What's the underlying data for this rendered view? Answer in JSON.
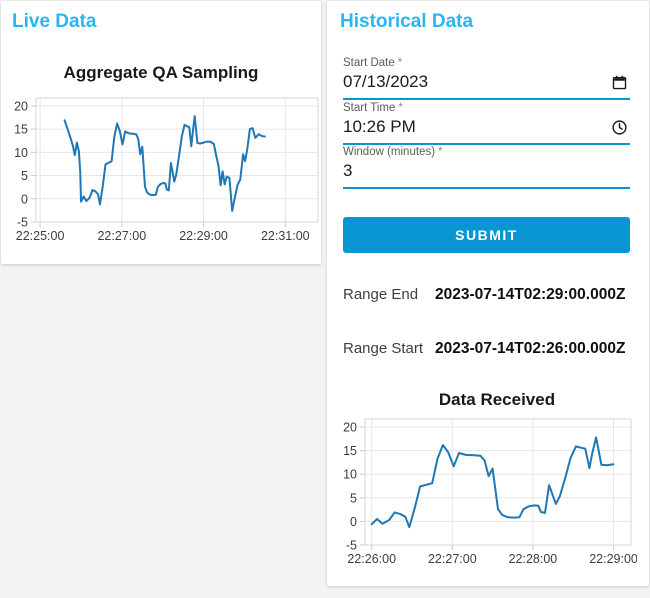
{
  "theme": {
    "heading_color": "#29b6f6",
    "accent": "#0a95d3",
    "line_color": "#1f77b4"
  },
  "panels": {
    "live": {
      "heading": "Live Data"
    },
    "historical": {
      "heading": "Historical Data"
    }
  },
  "form": {
    "start_date": {
      "label": "Start Date",
      "required_marker": "*",
      "value": "07/13/2023",
      "icon": "calendar-icon"
    },
    "start_time": {
      "label": "Start Time",
      "required_marker": "*",
      "value": "10:26 PM",
      "icon": "clock-icon"
    },
    "window_minutes": {
      "label": "Window (minutes)",
      "required_marker": "*",
      "value": "3"
    },
    "submit_label": "SUBMIT"
  },
  "results": {
    "range_end": {
      "label": "Range End",
      "value": "2023-07-14T02:29:00.000Z"
    },
    "range_start": {
      "label": "Range Start",
      "value": "2023-07-14T02:26:00.000Z"
    }
  },
  "chart_data": [
    {
      "id": "live",
      "type": "line",
      "title": "Aggregate QA Sampling",
      "x_base_time": "22:25:00",
      "x_unit": "seconds since 22:25:00",
      "xlim": [
        -6,
        408
      ],
      "ylim": [
        -5,
        21.7
      ],
      "yticks": [
        -5,
        0,
        5,
        10,
        15,
        20
      ],
      "xticks": [
        {
          "t": 0,
          "label": "22:25:00"
        },
        {
          "t": 120,
          "label": "22:27:00"
        },
        {
          "t": 240,
          "label": "22:29:00"
        },
        {
          "t": 360,
          "label": "22:31:00"
        }
      ],
      "grid": true,
      "legend": "none",
      "line_color": "#1f77b4",
      "points": [
        [
          36,
          16.9
        ],
        [
          40,
          15.2
        ],
        [
          44,
          13.4
        ],
        [
          48,
          11.5
        ],
        [
          51,
          9.4
        ],
        [
          54,
          12.1
        ],
        [
          57,
          10.2
        ],
        [
          59,
          5.5
        ],
        [
          60,
          -0.6
        ],
        [
          64,
          0.5
        ],
        [
          68,
          -0.5
        ],
        [
          73,
          0.3
        ],
        [
          77,
          1.9
        ],
        [
          81,
          1.6
        ],
        [
          85,
          1.0
        ],
        [
          88,
          -1.2
        ],
        [
          92,
          2.8
        ],
        [
          96,
          7.4
        ],
        [
          101,
          7.8
        ],
        [
          105,
          8.1
        ],
        [
          109,
          13.3
        ],
        [
          113,
          16.2
        ],
        [
          117,
          14.6
        ],
        [
          121,
          11.7
        ],
        [
          125,
          14.5
        ],
        [
          130,
          14.1
        ],
        [
          136,
          14.0
        ],
        [
          141,
          13.9
        ],
        [
          144,
          12.9
        ],
        [
          147,
          9.6
        ],
        [
          150,
          11.2
        ],
        [
          154,
          2.6
        ],
        [
          157,
          1.4
        ],
        [
          161,
          0.9
        ],
        [
          166,
          0.8
        ],
        [
          170,
          0.9
        ],
        [
          173,
          2.6
        ],
        [
          177,
          3.2
        ],
        [
          181,
          3.4
        ],
        [
          184,
          3.3
        ],
        [
          186,
          2.0
        ],
        [
          189,
          1.8
        ],
        [
          192,
          7.7
        ],
        [
          197,
          3.7
        ],
        [
          200,
          5.3
        ],
        [
          204,
          9.2
        ],
        [
          208,
          13.4
        ],
        [
          212,
          15.9
        ],
        [
          216,
          15.6
        ],
        [
          219,
          15.4
        ],
        [
          222,
          11.3
        ],
        [
          224,
          14.2
        ],
        [
          227,
          17.8
        ],
        [
          231,
          12.0
        ],
        [
          235,
          11.9
        ],
        [
          240,
          12.1
        ],
        [
          244,
          12.3
        ],
        [
          250,
          12.3
        ],
        [
          255,
          11.8
        ],
        [
          259,
          9.0
        ],
        [
          262,
          7.0
        ],
        [
          265,
          2.9
        ],
        [
          268,
          5.9
        ],
        [
          271,
          3.1
        ],
        [
          274,
          4.8
        ],
        [
          278,
          4.5
        ],
        [
          282,
          -2.6
        ],
        [
          286,
          0.3
        ],
        [
          290,
          3.0
        ],
        [
          294,
          4.2
        ],
        [
          298,
          9.6
        ],
        [
          301,
          8.1
        ],
        [
          304,
          10.6
        ],
        [
          308,
          15.0
        ],
        [
          312,
          15.2
        ],
        [
          316,
          13.1
        ],
        [
          321,
          13.9
        ],
        [
          326,
          13.5
        ],
        [
          330,
          13.4
        ]
      ]
    },
    {
      "id": "hist",
      "type": "line",
      "title": "Data Received",
      "x_base_time": "22:26:00",
      "x_unit": "seconds since 22:26:00",
      "xlim": [
        -5,
        193
      ],
      "ylim": [
        -5,
        21.7
      ],
      "yticks": [
        -5,
        0,
        5,
        10,
        15,
        20
      ],
      "xticks": [
        {
          "t": 0,
          "label": "22:26:00"
        },
        {
          "t": 60,
          "label": "22:27:00"
        },
        {
          "t": 120,
          "label": "22:28:00"
        },
        {
          "t": 180,
          "label": "22:29:00"
        }
      ],
      "grid": true,
      "legend": "none",
      "line_color": "#1f77b4",
      "points": [
        [
          0,
          -0.6
        ],
        [
          4,
          0.5
        ],
        [
          8,
          -0.5
        ],
        [
          13,
          0.3
        ],
        [
          17,
          1.9
        ],
        [
          21,
          1.6
        ],
        [
          25,
          1.0
        ],
        [
          28,
          -1.2
        ],
        [
          32,
          2.8
        ],
        [
          36,
          7.4
        ],
        [
          41,
          7.8
        ],
        [
          45,
          8.1
        ],
        [
          49,
          13.3
        ],
        [
          53,
          16.2
        ],
        [
          57,
          14.6
        ],
        [
          61,
          11.7
        ],
        [
          65,
          14.5
        ],
        [
          70,
          14.1
        ],
        [
          76,
          14.0
        ],
        [
          81,
          13.9
        ],
        [
          84,
          12.9
        ],
        [
          87,
          9.6
        ],
        [
          90,
          11.2
        ],
        [
          94,
          2.6
        ],
        [
          97,
          1.4
        ],
        [
          101,
          0.9
        ],
        [
          106,
          0.8
        ],
        [
          110,
          0.9
        ],
        [
          113,
          2.6
        ],
        [
          117,
          3.2
        ],
        [
          121,
          3.4
        ],
        [
          124,
          3.3
        ],
        [
          126,
          2.0
        ],
        [
          129,
          1.8
        ],
        [
          132,
          7.7
        ],
        [
          137,
          3.7
        ],
        [
          140,
          5.3
        ],
        [
          144,
          9.2
        ],
        [
          148,
          13.4
        ],
        [
          152,
          15.9
        ],
        [
          156,
          15.6
        ],
        [
          159,
          15.4
        ],
        [
          162,
          11.3
        ],
        [
          164,
          14.2
        ],
        [
          167,
          17.8
        ],
        [
          171,
          12.0
        ],
        [
          175,
          11.9
        ],
        [
          180,
          12.1
        ]
      ]
    }
  ]
}
